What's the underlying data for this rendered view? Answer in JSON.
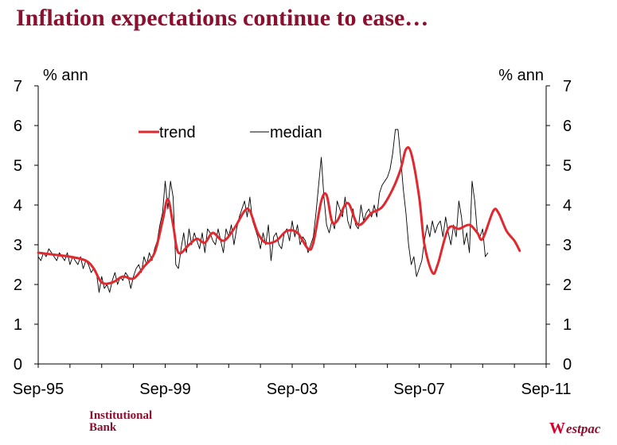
{
  "title": "Inflation expectations continue to ease…",
  "brand": {
    "left_line1": "Institutional",
    "left_line2": "Bank",
    "right_mark": "W",
    "right_text": "estpac"
  },
  "colors": {
    "title": "#8b0f2e",
    "trend": "#e0282e",
    "median": "#000000",
    "brand_red": "#d5002b"
  },
  "chart_data": {
    "type": "line",
    "title": "",
    "ylabel_left": "% ann",
    "ylabel_right": "% ann",
    "ylim": [
      0,
      7
    ],
    "yticks": [
      0,
      1,
      2,
      3,
      4,
      5,
      6,
      7
    ],
    "x_start": "Sep-95",
    "x_end": "Sep-11",
    "xticks": [
      {
        "label": "Sep-95",
        "t": 0
      },
      {
        "label": "Sep-99",
        "t": 48
      },
      {
        "label": "Sep-03",
        "t": 96
      },
      {
        "label": "Sep-07",
        "t": 144
      },
      {
        "label": "Sep-11",
        "t": 192
      }
    ],
    "legend": [
      {
        "name": "trend",
        "color": "#e0282e"
      },
      {
        "name": "median",
        "color": "#000000"
      }
    ],
    "series": [
      {
        "name": "trend",
        "note": "months since Sep-95, value in % ann",
        "points": [
          [
            0,
            2.8
          ],
          [
            6,
            2.75
          ],
          [
            12,
            2.7
          ],
          [
            18,
            2.6
          ],
          [
            21,
            2.4
          ],
          [
            24,
            2.05
          ],
          [
            28,
            2.05
          ],
          [
            32,
            2.2
          ],
          [
            36,
            2.15
          ],
          [
            40,
            2.45
          ],
          [
            44,
            2.8
          ],
          [
            47,
            3.6
          ],
          [
            49,
            4.15
          ],
          [
            51,
            3.5
          ],
          [
            53,
            2.8
          ],
          [
            57,
            3.0
          ],
          [
            60,
            3.15
          ],
          [
            63,
            3.05
          ],
          [
            66,
            3.3
          ],
          [
            70,
            3.1
          ],
          [
            74,
            3.4
          ],
          [
            78,
            3.85
          ],
          [
            80,
            3.85
          ],
          [
            83,
            3.3
          ],
          [
            86,
            3.05
          ],
          [
            90,
            3.1
          ],
          [
            94,
            3.35
          ],
          [
            98,
            3.3
          ],
          [
            102,
            2.9
          ],
          [
            104,
            3.05
          ],
          [
            107,
            4.1
          ],
          [
            109,
            4.25
          ],
          [
            111,
            3.6
          ],
          [
            113,
            3.6
          ],
          [
            117,
            4.05
          ],
          [
            121,
            3.5
          ],
          [
            126,
            3.8
          ],
          [
            130,
            3.95
          ],
          [
            134,
            4.4
          ],
          [
            137,
            4.9
          ],
          [
            139,
            5.4
          ],
          [
            141,
            5.3
          ],
          [
            144,
            4.2
          ],
          [
            146,
            3.0
          ],
          [
            149,
            2.3
          ],
          [
            151,
            2.5
          ],
          [
            155,
            3.4
          ],
          [
            159,
            3.4
          ],
          [
            163,
            3.5
          ],
          [
            166,
            3.3
          ],
          [
            168,
            3.15
          ],
          [
            172,
            3.85
          ],
          [
            174,
            3.8
          ],
          [
            177,
            3.35
          ],
          [
            180,
            3.1
          ],
          [
            182,
            2.85
          ]
        ]
      },
      {
        "name": "median",
        "values": [
          2.7,
          2.6,
          2.8,
          2.7,
          2.9,
          2.8,
          2.7,
          2.6,
          2.8,
          2.7,
          2.6,
          2.8,
          2.5,
          2.7,
          2.6,
          2.5,
          2.7,
          2.4,
          2.6,
          2.5,
          2.3,
          2.4,
          2.3,
          1.8,
          2.2,
          1.9,
          2.0,
          1.8,
          2.1,
          2.3,
          2.0,
          2.2,
          2.1,
          2.3,
          2.2,
          1.9,
          2.2,
          2.4,
          2.5,
          2.3,
          2.7,
          2.5,
          2.8,
          2.6,
          2.9,
          3.1,
          3.5,
          3.8,
          4.6,
          3.9,
          4.6,
          4.2,
          2.5,
          2.4,
          2.9,
          3.3,
          2.8,
          3.4,
          3.0,
          3.3,
          3.1,
          2.9,
          3.3,
          2.8,
          3.4,
          3.3,
          3.1,
          3.0,
          3.4,
          3.1,
          2.8,
          3.4,
          3.2,
          3.5,
          3.0,
          3.4,
          3.7,
          3.9,
          4.1,
          3.7,
          4.2,
          3.6,
          3.4,
          3.2,
          2.9,
          3.3,
          3.0,
          3.5,
          2.6,
          3.2,
          3.3,
          3.0,
          2.9,
          3.3,
          3.4,
          3.1,
          3.6,
          3.2,
          3.5,
          3.0,
          3.2,
          3.1,
          2.8,
          3.0,
          3.2,
          3.8,
          4.5,
          5.2,
          4.2,
          3.5,
          3.3,
          3.6,
          3.4,
          4.1,
          3.9,
          3.7,
          4.2,
          3.6,
          3.4,
          3.9,
          3.5,
          3.4,
          4.0,
          3.6,
          3.8,
          3.9,
          3.7,
          4.0,
          3.7,
          4.3,
          4.5,
          4.6,
          4.7,
          4.9,
          5.3,
          5.9,
          5.9,
          5.2,
          4.4,
          3.8,
          3.0,
          2.5,
          2.7,
          2.2,
          2.4,
          2.6,
          3.1,
          3.5,
          3.2,
          3.6,
          3.3,
          3.5,
          3.6,
          3.2,
          3.7,
          3.3,
          3.0,
          3.5,
          3.2,
          4.1,
          3.7,
          3.0,
          3.3,
          2.8,
          4.6,
          4.1,
          3.3,
          3.2,
          3.4,
          2.7,
          2.8
        ]
      }
    ]
  }
}
